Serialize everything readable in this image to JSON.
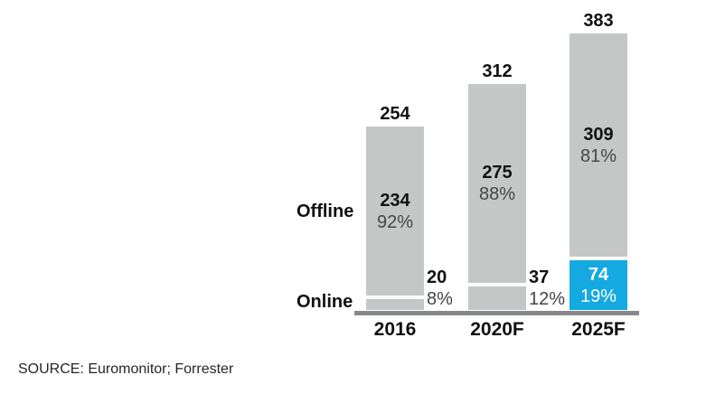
{
  "chart_data": {
    "type": "bar",
    "subtype": "stacked",
    "title": "",
    "categories": [
      "2016",
      "2020F",
      "2025F"
    ],
    "totals": [
      254,
      312,
      383
    ],
    "series": [
      {
        "name": "Offline",
        "values": [
          234,
          275,
          309
        ],
        "percent_labels": [
          "92%",
          "88%",
          "81%"
        ]
      },
      {
        "name": "Online",
        "values": [
          20,
          37,
          74
        ],
        "percent_labels": [
          "8%",
          "12%",
          "19%"
        ]
      }
    ],
    "highlight": {
      "series": "Online",
      "category": "2025F",
      "color": "#14a9e1"
    },
    "bar_color": "#c5c7c7",
    "baseline_color": "#87898c",
    "grid": false,
    "legend_position": "left-of-bars",
    "ylim": [
      0,
      383
    ]
  },
  "source_note": "SOURCE: Euromonitor; Forrester"
}
